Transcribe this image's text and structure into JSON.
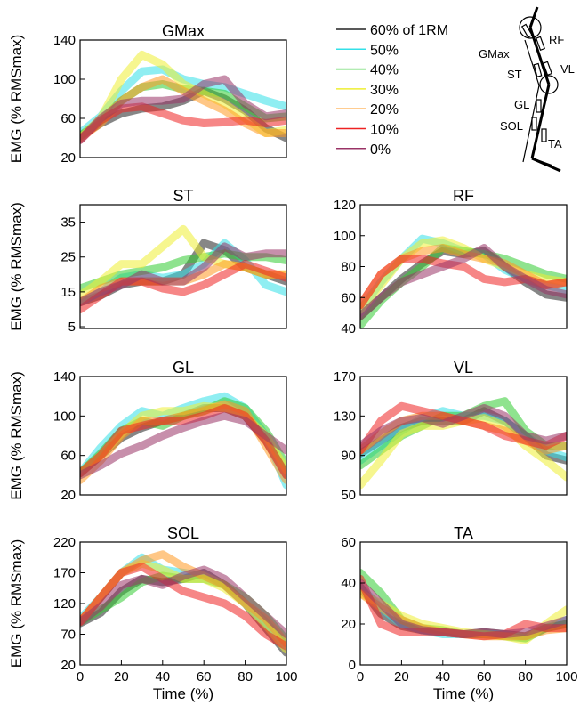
{
  "chart_data": [
    {
      "type": "line",
      "title": "GMax",
      "y_label": "EMG (% RMSmax)",
      "ylim": [
        20,
        140
      ],
      "yticks": [
        20,
        60,
        100,
        140
      ],
      "xlim": [
        0,
        100
      ],
      "x": [
        0,
        10,
        20,
        30,
        40,
        50,
        60,
        70,
        80,
        90,
        100
      ],
      "series": [
        {
          "name": "60% of 1RM",
          "color": "#222222",
          "values": [
            42,
            55,
            65,
            70,
            72,
            78,
            88,
            80,
            68,
            50,
            40
          ]
        },
        {
          "name": "50%",
          "color": "#33e0e8",
          "values": [
            45,
            62,
            88,
            108,
            110,
            100,
            95,
            92,
            85,
            78,
            72
          ]
        },
        {
          "name": "40%",
          "color": "#33cc33",
          "values": [
            42,
            58,
            78,
            92,
            95,
            90,
            88,
            85,
            72,
            60,
            62
          ]
        },
        {
          "name": "30%",
          "color": "#eeee33",
          "values": [
            40,
            60,
            100,
            125,
            115,
            95,
            85,
            75,
            60,
            45,
            48
          ]
        },
        {
          "name": "20%",
          "color": "#ff9922",
          "values": [
            40,
            55,
            78,
            92,
            100,
            88,
            78,
            68,
            55,
            45,
            45
          ]
        },
        {
          "name": "10%",
          "color": "#ee2222",
          "values": [
            38,
            58,
            70,
            72,
            65,
            58,
            55,
            56,
            58,
            55,
            58
          ]
        },
        {
          "name": "0%",
          "color": "#993366",
          "values": [
            38,
            60,
            75,
            78,
            78,
            80,
            95,
            100,
            75,
            62,
            65
          ]
        }
      ]
    },
    {
      "type": "line",
      "title": "ST",
      "y_label": "EMG (% RMSmax)",
      "ylim": [
        4.5,
        40
      ],
      "yticks": [
        5,
        15,
        25,
        35
      ],
      "xlim": [
        0,
        100
      ],
      "x": [
        0,
        10,
        20,
        30,
        40,
        50,
        60,
        70,
        80,
        90,
        100
      ],
      "series": [
        {
          "color": "#222222",
          "values": [
            12,
            14,
            17,
            18,
            18,
            20,
            29,
            27,
            22,
            20,
            18
          ]
        },
        {
          "color": "#33e0e8",
          "values": [
            12,
            15,
            19,
            20,
            19,
            20,
            23,
            29,
            24,
            17,
            15
          ]
        },
        {
          "color": "#33cc33",
          "values": [
            16,
            18,
            20,
            21,
            22,
            24,
            25,
            26,
            25,
            25,
            24
          ]
        },
        {
          "color": "#eeee33",
          "values": [
            14,
            18,
            23,
            23,
            28,
            33,
            25,
            23,
            22,
            20,
            20
          ]
        },
        {
          "color": "#ff9922",
          "values": [
            12,
            16,
            18,
            18,
            18,
            18,
            20,
            23,
            22,
            20,
            20
          ]
        },
        {
          "color": "#ee2222",
          "values": [
            10,
            14,
            18,
            18,
            16,
            15,
            17,
            20,
            23,
            21,
            19
          ]
        },
        {
          "color": "#993366",
          "values": [
            12,
            15,
            17,
            20,
            18,
            18,
            22,
            28,
            25,
            26,
            26
          ]
        }
      ]
    },
    {
      "type": "line",
      "title": "RF",
      "ylim": [
        40,
        120
      ],
      "yticks": [
        40,
        60,
        80,
        100,
        120
      ],
      "xlim": [
        0,
        100
      ],
      "x": [
        0,
        10,
        20,
        30,
        40,
        50,
        60,
        70,
        80,
        90,
        100
      ],
      "series": [
        {
          "color": "#222222",
          "values": [
            48,
            60,
            72,
            82,
            90,
            88,
            90,
            80,
            70,
            62,
            60
          ]
        },
        {
          "color": "#33e0e8",
          "values": [
            52,
            70,
            85,
            98,
            95,
            90,
            88,
            78,
            72,
            68,
            65
          ]
        },
        {
          "color": "#33cc33",
          "values": [
            42,
            58,
            70,
            80,
            92,
            90,
            88,
            85,
            80,
            75,
            72
          ]
        },
        {
          "color": "#eeee33",
          "values": [
            52,
            68,
            85,
            95,
            97,
            92,
            85,
            80,
            75,
            72,
            70
          ]
        },
        {
          "color": "#ff9922",
          "values": [
            55,
            75,
            85,
            90,
            92,
            88,
            85,
            82,
            75,
            68,
            70
          ]
        },
        {
          "color": "#ee2222",
          "values": [
            55,
            75,
            85,
            85,
            82,
            80,
            72,
            70,
            72,
            68,
            70
          ]
        },
        {
          "color": "#993366",
          "values": [
            48,
            60,
            70,
            75,
            80,
            85,
            92,
            80,
            72,
            65,
            62
          ]
        }
      ]
    },
    {
      "type": "line",
      "title": "GL",
      "y_label": "EMG (% RMSmax)",
      "ylim": [
        20,
        140
      ],
      "yticks": [
        20,
        60,
        100,
        140
      ],
      "xlim": [
        0,
        100
      ],
      "x": [
        0,
        10,
        20,
        30,
        40,
        50,
        60,
        70,
        80,
        90,
        100
      ],
      "series": [
        {
          "color": "#222222",
          "values": [
            42,
            60,
            78,
            88,
            95,
            100,
            108,
            108,
            100,
            75,
            40
          ]
        },
        {
          "color": "#33e0e8",
          "values": [
            42,
            68,
            90,
            105,
            100,
            108,
            115,
            120,
            108,
            80,
            30
          ]
        },
        {
          "color": "#33cc33",
          "values": [
            42,
            62,
            85,
            95,
            90,
            100,
            105,
            115,
            108,
            85,
            50
          ]
        },
        {
          "color": "#eeee33",
          "values": [
            42,
            60,
            82,
            100,
            105,
            105,
            110,
            108,
            100,
            80,
            45
          ]
        },
        {
          "color": "#ff9922",
          "values": [
            35,
            55,
            80,
            95,
            95,
            100,
            105,
            112,
            105,
            70,
            35
          ]
        },
        {
          "color": "#ee2222",
          "values": [
            42,
            60,
            85,
            90,
            95,
            95,
            100,
            108,
            100,
            75,
            40
          ]
        },
        {
          "color": "#993366",
          "values": [
            40,
            50,
            62,
            70,
            80,
            88,
            95,
            100,
            95,
            80,
            65
          ]
        }
      ]
    },
    {
      "type": "line",
      "title": "VL",
      "ylim": [
        50,
        170
      ],
      "yticks": [
        50,
        90,
        130,
        170
      ],
      "xlim": [
        0,
        100
      ],
      "x": [
        0,
        10,
        20,
        30,
        40,
        50,
        60,
        70,
        80,
        90,
        100
      ],
      "series": [
        {
          "color": "#222222",
          "values": [
            92,
            105,
            118,
            125,
            125,
            125,
            135,
            125,
            110,
            90,
            85
          ]
        },
        {
          "color": "#33e0e8",
          "values": [
            85,
            100,
            115,
            128,
            135,
            130,
            130,
            125,
            110,
            95,
            88
          ]
        },
        {
          "color": "#33cc33",
          "values": [
            80,
            95,
            110,
            120,
            130,
            130,
            140,
            145,
            115,
            100,
            100
          ]
        },
        {
          "color": "#eeee33",
          "values": [
            60,
            85,
            112,
            120,
            120,
            125,
            128,
            120,
            100,
            85,
            68
          ]
        },
        {
          "color": "#ff9922",
          "values": [
            95,
            112,
            125,
            130,
            130,
            125,
            120,
            115,
            105,
            95,
            100
          ]
        },
        {
          "color": "#ee2222",
          "values": [
            95,
            125,
            140,
            135,
            130,
            125,
            120,
            110,
            105,
            100,
            110
          ]
        },
        {
          "color": "#993366",
          "values": [
            100,
            115,
            125,
            128,
            122,
            130,
            138,
            130,
            110,
            105,
            110
          ]
        }
      ]
    },
    {
      "type": "line",
      "title": "SOL",
      "y_label": "EMG (% RMSmax)",
      "x_label": "Time (%)",
      "ylim": [
        20,
        220
      ],
      "yticks": [
        20,
        70,
        120,
        170,
        220
      ],
      "xlim": [
        0,
        100
      ],
      "xticks": [
        0,
        20,
        40,
        60,
        80,
        100
      ],
      "x": [
        0,
        10,
        20,
        30,
        40,
        50,
        60,
        70,
        80,
        90,
        100
      ],
      "series": [
        {
          "color": "#222222",
          "values": [
            88,
            105,
            140,
            160,
            155,
            160,
            170,
            150,
            120,
            80,
            40
          ]
        },
        {
          "color": "#33e0e8",
          "values": [
            95,
            130,
            170,
            195,
            175,
            170,
            165,
            150,
            120,
            90,
            50
          ]
        },
        {
          "color": "#33cc33",
          "values": [
            90,
            110,
            130,
            155,
            165,
            160,
            160,
            150,
            130,
            100,
            60
          ]
        },
        {
          "color": "#eeee33",
          "values": [
            90,
            130,
            170,
            185,
            175,
            160,
            160,
            145,
            120,
            85,
            45
          ]
        },
        {
          "color": "#ff9922",
          "values": [
            90,
            130,
            170,
            190,
            200,
            180,
            165,
            150,
            120,
            95,
            55
          ]
        },
        {
          "color": "#ee2222",
          "values": [
            90,
            130,
            170,
            180,
            160,
            140,
            130,
            120,
            100,
            70,
            50
          ]
        },
        {
          "color": "#993366",
          "values": [
            90,
            115,
            150,
            160,
            150,
            165,
            175,
            160,
            130,
            100,
            70
          ]
        }
      ]
    },
    {
      "type": "line",
      "title": "TA",
      "x_label": "Time (%)",
      "ylim": [
        0,
        60
      ],
      "yticks": [
        0,
        20,
        40,
        60
      ],
      "xlim": [
        0,
        100
      ],
      "xticks": [
        0,
        20,
        40,
        60,
        80,
        100
      ],
      "x": [
        0,
        10,
        20,
        30,
        40,
        50,
        60,
        70,
        80,
        90,
        100
      ],
      "series": [
        {
          "color": "#222222",
          "values": [
            38,
            25,
            19,
            17,
            16,
            15,
            16,
            15,
            14,
            18,
            20
          ]
        },
        {
          "color": "#33e0e8",
          "values": [
            38,
            28,
            20,
            17,
            15,
            15,
            15,
            15,
            13,
            18,
            22
          ]
        },
        {
          "color": "#33cc33",
          "values": [
            45,
            35,
            22,
            18,
            17,
            15,
            15,
            14,
            13,
            18,
            20
          ]
        },
        {
          "color": "#eeee33",
          "values": [
            35,
            30,
            24,
            20,
            18,
            16,
            15,
            14,
            12,
            20,
            27
          ]
        },
        {
          "color": "#ff9922",
          "values": [
            35,
            28,
            22,
            18,
            16,
            15,
            14,
            14,
            14,
            17,
            18
          ]
        },
        {
          "color": "#ee2222",
          "values": [
            42,
            20,
            16,
            16,
            16,
            15,
            14,
            15,
            20,
            18,
            18
          ]
        },
        {
          "color": "#993366",
          "values": [
            40,
            30,
            20,
            17,
            16,
            15,
            16,
            15,
            16,
            19,
            22
          ]
        }
      ]
    }
  ],
  "diagram": {
    "labels": [
      "RF",
      "GMax",
      "VL",
      "ST",
      "GL",
      "SOL",
      "TA"
    ]
  }
}
